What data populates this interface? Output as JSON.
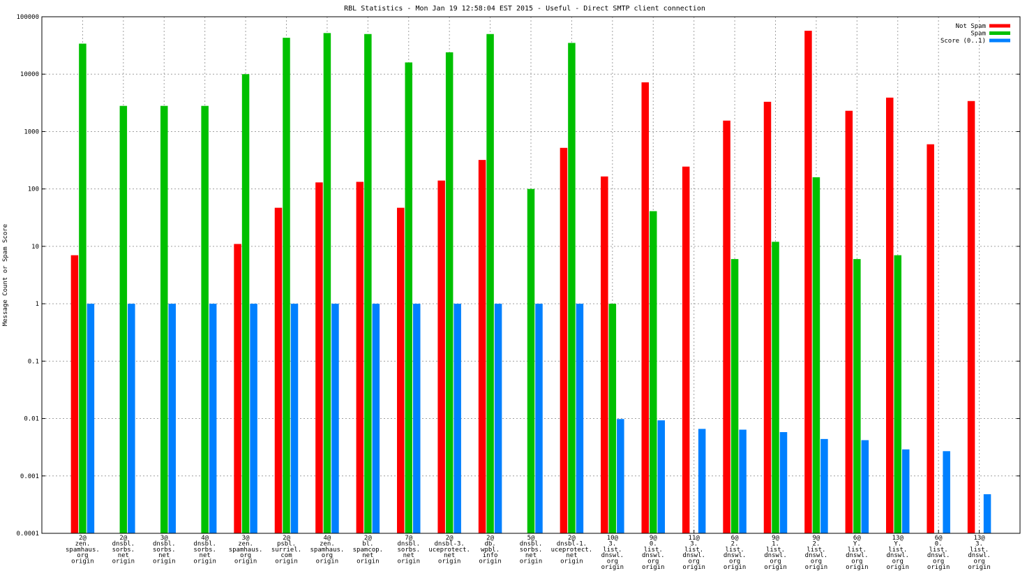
{
  "chart_data": {
    "type": "bar",
    "title": "RBL Statistics - Mon Jan 19 12:58:04 EST 2015 - Useful - Direct SMTP client connection",
    "xlabel": "",
    "ylabel": "Message Count or Spam Score",
    "y_scale": "log",
    "ylim": [
      0.0001,
      100000
    ],
    "y_ticks": [
      "0.0001",
      "0.001",
      "0.01",
      "0.1",
      "1",
      "10",
      "100",
      "1000",
      "10000",
      "100000"
    ],
    "grid": true,
    "legend_position": "top-right",
    "categories": [
      [
        "2@",
        "zen.",
        "spamhaus.",
        "org",
        "origin"
      ],
      [
        "2@",
        "dnsbl.",
        "sorbs.",
        "net",
        "origin"
      ],
      [
        "3@",
        "dnsbl.",
        "sorbs.",
        "net",
        "origin"
      ],
      [
        "4@",
        "dnsbl.",
        "sorbs.",
        "net",
        "origin"
      ],
      [
        "3@",
        "zen.",
        "spamhaus.",
        "org",
        "origin"
      ],
      [
        "2@",
        "psbl.",
        "surriel.",
        "com",
        "origin"
      ],
      [
        "4@",
        "zen.",
        "spamhaus.",
        "org",
        "origin"
      ],
      [
        "2@",
        "bl.",
        "spamcop.",
        "net",
        "origin"
      ],
      [
        "7@",
        "dnsbl.",
        "sorbs.",
        "net",
        "origin"
      ],
      [
        "2@",
        "dnsbl-3.",
        "uceprotect.",
        "net",
        "origin"
      ],
      [
        "2@",
        "db.",
        "wpbl.",
        "info",
        "origin"
      ],
      [
        "5@",
        "dnsbl.",
        "sorbs.",
        "net",
        "origin"
      ],
      [
        "2@",
        "dnsbl-1.",
        "uceprotect.",
        "net",
        "origin"
      ],
      [
        "10@",
        "3.",
        "list.",
        "dnswl.",
        "org",
        "origin"
      ],
      [
        "9@",
        "0.",
        "list.",
        "dnswl.",
        "org",
        "origin"
      ],
      [
        "11@",
        "3.",
        "list.",
        "dnswl.",
        "org",
        "origin"
      ],
      [
        "6@",
        "2.",
        "list.",
        "dnswl.",
        "org",
        "origin"
      ],
      [
        "9@",
        "1.",
        "list.",
        "dnswl.",
        "org",
        "origin"
      ],
      [
        "9@",
        "2.",
        "list.",
        "dnswl.",
        "org",
        "origin"
      ],
      [
        "6@",
        "Y.",
        "list.",
        "dnswl.",
        "org",
        "origin"
      ],
      [
        "13@",
        "Y.",
        "list.",
        "dnswl.",
        "org",
        "origin"
      ],
      [
        "6@",
        "0.",
        "list.",
        "dnswl.",
        "org",
        "origin"
      ],
      [
        "13@",
        "3.",
        "list.",
        "dnswl.",
        "org",
        "origin"
      ]
    ],
    "series": [
      {
        "name": "Not Spam",
        "color": "#ff0000",
        "values": [
          7,
          null,
          null,
          null,
          11,
          47,
          130,
          133,
          47,
          140,
          320,
          null,
          520,
          165,
          7200,
          245,
          1550,
          3300,
          57000,
          2300,
          3900,
          600,
          3400
        ]
      },
      {
        "name": "Spam",
        "color": "#00c000",
        "values": [
          34000,
          2800,
          2800,
          2800,
          10000,
          43000,
          52000,
          50000,
          16000,
          24000,
          50000,
          100,
          35000,
          1,
          41,
          null,
          6,
          12,
          160,
          6,
          7,
          null,
          null
        ]
      },
      {
        "name": "Score (0..1)",
        "color": "#0080ff",
        "values": [
          1,
          1,
          1,
          1,
          1,
          1,
          1,
          1,
          1,
          1,
          1,
          1,
          1,
          0.0098,
          0.0093,
          0.0066,
          0.0064,
          0.0058,
          0.0044,
          0.0042,
          0.0029,
          0.0027,
          0.00048
        ]
      }
    ]
  }
}
